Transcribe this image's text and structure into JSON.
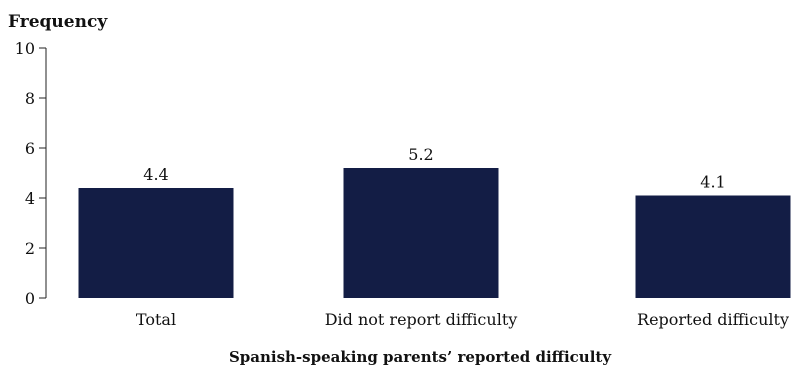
{
  "chart_data": {
    "type": "bar",
    "title": "",
    "ylabel": "Frequency",
    "xlabel": "Spanish-speaking parents’ reported difficulty",
    "categories": [
      "Total",
      "Did not report difficulty",
      "Reported difficulty"
    ],
    "values": [
      4.4,
      5.2,
      4.1
    ],
    "data_labels": [
      "4.4",
      "5.2",
      "4.1"
    ],
    "ylim": [
      0,
      10
    ],
    "yticks": [
      0,
      2,
      4,
      6,
      8,
      10
    ],
    "bar_color": "#131d45",
    "grid": false,
    "legend": "none"
  }
}
